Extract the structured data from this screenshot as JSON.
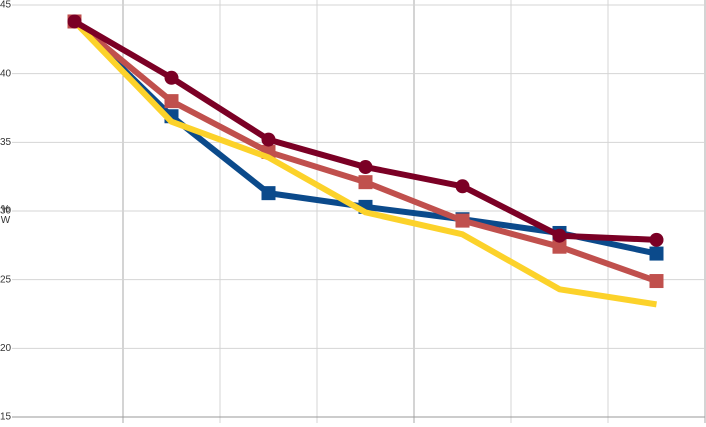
{
  "chart_data": {
    "type": "line",
    "y_label": "%W",
    "categories": [
      null,
      null,
      null,
      null,
      null,
      null,
      null
    ],
    "ylim": [
      15,
      45
    ],
    "yticks": [
      15,
      20,
      25,
      30,
      35,
      40,
      45
    ],
    "grid": true,
    "series": [
      {
        "color": "#0b4a8b",
        "marker": "square",
        "values": [
          43.8,
          36.9,
          31.3,
          30.3,
          29.4,
          28.4,
          26.9
        ]
      },
      {
        "color": "#c0504d",
        "marker": "square",
        "values": [
          43.8,
          38.0,
          34.3,
          32.1,
          29.3,
          27.4,
          24.9
        ]
      },
      {
        "color": "#fcd22a",
        "marker": "none",
        "values": [
          43.8,
          36.5,
          33.9,
          29.9,
          28.3,
          24.3,
          23.2
        ]
      },
      {
        "color": "#7b0025",
        "marker": "circle",
        "values": [
          43.8,
          39.7,
          35.2,
          33.2,
          31.8,
          28.2,
          27.9
        ]
      }
    ]
  }
}
